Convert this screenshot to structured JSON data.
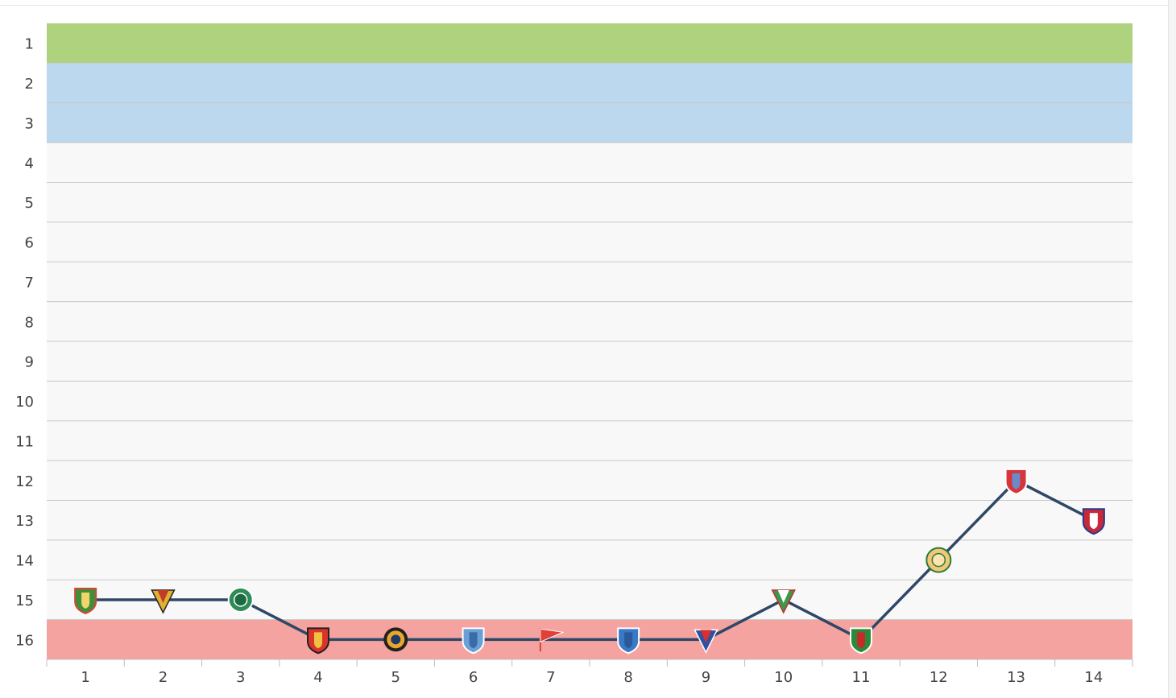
{
  "chart_data": {
    "type": "line",
    "x": [
      1,
      2,
      3,
      4,
      5,
      6,
      7,
      8,
      9,
      10,
      11,
      12,
      13,
      14
    ],
    "series": [
      {
        "values": [
          15,
          15,
          15,
          16,
          16,
          16,
          16,
          16,
          16,
          15,
          16,
          14,
          12,
          13
        ]
      }
    ],
    "y_ticks": [
      1,
      2,
      3,
      4,
      5,
      6,
      7,
      8,
      9,
      10,
      11,
      12,
      13,
      14,
      15,
      16
    ],
    "x_ticks": [
      1,
      2,
      3,
      4,
      5,
      6,
      7,
      8,
      9,
      10,
      11,
      12,
      13,
      14
    ],
    "ylim": [
      1,
      16
    ],
    "y_inverted": true,
    "grid": true,
    "zones": [
      {
        "from": 1,
        "to": 1,
        "color": "#aed27e"
      },
      {
        "from": 2,
        "to": 3,
        "color": "#bcd8ee"
      },
      {
        "from": 4,
        "to": 15,
        "color": "#f8f8f8"
      },
      {
        "from": 16,
        "to": 16,
        "color": "#f4a3a0"
      }
    ],
    "line_color": "#2f4766",
    "markers": [
      {
        "icon": "shield-green-red-icon",
        "colors": [
          "#3f8f3a",
          "#d9443a",
          "#f1d46a"
        ]
      },
      {
        "icon": "pennant-yellow-red-icon",
        "colors": [
          "#e0b030",
          "#c23a2a",
          "#222222"
        ]
      },
      {
        "icon": "circle-green-crest-icon",
        "colors": [
          "#2e8b57",
          "#ffffff",
          "#1c6a40"
        ]
      },
      {
        "icon": "shield-red-black-icon",
        "colors": [
          "#d8342c",
          "#222222",
          "#f0c040"
        ]
      },
      {
        "icon": "gear-crest-icon",
        "colors": [
          "#e8a62c",
          "#1f3a6a",
          "#222222"
        ]
      },
      {
        "icon": "shield-blue-white-icon",
        "colors": [
          "#6aa0d8",
          "#ffffff",
          "#3a6aa8"
        ]
      },
      {
        "icon": "flag-red-white-icon",
        "colors": [
          "#e0403a",
          "#ffffff",
          "#e0403a"
        ]
      },
      {
        "icon": "shield-blue-stripes-icon",
        "colors": [
          "#3a78c8",
          "#ffffff",
          "#2a5a9a"
        ]
      },
      {
        "icon": "pennant-blue-red-icon",
        "colors": [
          "#3050a0",
          "#d83030",
          "#ffffff"
        ]
      },
      {
        "icon": "pennant-green-white-icon",
        "colors": [
          "#3a9a4a",
          "#ffffff",
          "#c03030"
        ]
      },
      {
        "icon": "shield-green-white-red-icon",
        "colors": [
          "#2a8a3a",
          "#ffffff",
          "#c82a2a"
        ]
      },
      {
        "icon": "circle-yellow-green-icon",
        "colors": [
          "#f0c878",
          "#2a7a3a",
          "#ffe4b0"
        ]
      },
      {
        "icon": "shield-red-white-blue-icon",
        "colors": [
          "#d8343c",
          "#ffffff",
          "#6a8ac8"
        ]
      },
      {
        "icon": "shield-red-blue-icon",
        "colors": [
          "#c8283a",
          "#2a3a8a",
          "#ffffff"
        ]
      }
    ]
  }
}
